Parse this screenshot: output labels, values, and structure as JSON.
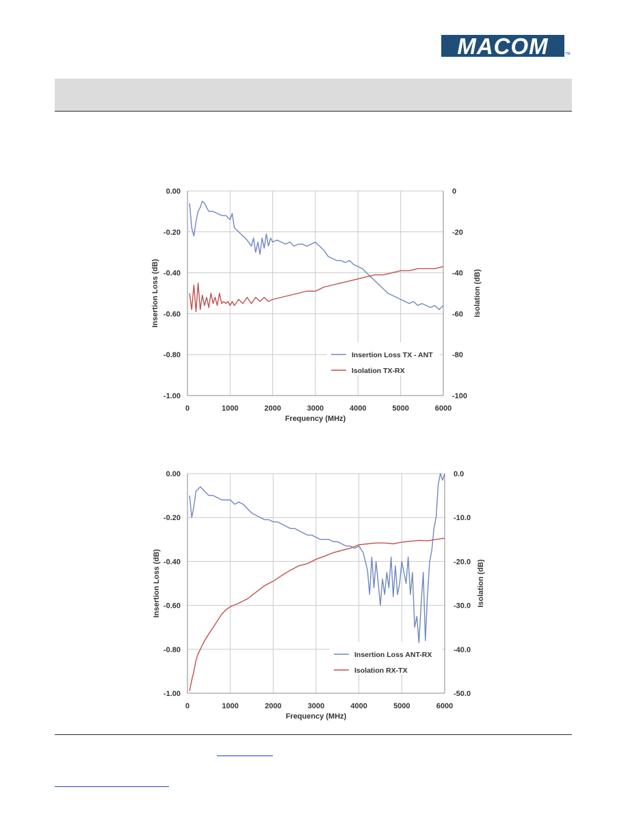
{
  "header": {
    "logo_text": "MACOM",
    "logo_tm": "TM",
    "logo_color": "#1f4e79"
  },
  "colors": {
    "insertion_loss": "#6f87c0",
    "isolation": "#c0504d",
    "grid": "#c9c9c9"
  },
  "chart_data": [
    {
      "type": "line",
      "title": "",
      "xlabel": "Frequency (MHz)",
      "ylabel": "Insertion Loss (dB)",
      "y2label": "Isolation (dB)",
      "xlim": [
        0,
        6000
      ],
      "ylim": [
        -1.0,
        0.0
      ],
      "y2lim": [
        -100,
        0
      ],
      "xticks": [
        "0",
        "1000",
        "2000",
        "3000",
        "4000",
        "5000",
        "6000"
      ],
      "yticks": [
        "0.00",
        "-0.20",
        "-0.40",
        "-0.60",
        "-0.80",
        "-1.00"
      ],
      "y2ticks": [
        "0",
        "-20",
        "-40",
        "-60",
        "-80",
        "-100"
      ],
      "legend_position": "lower-right",
      "series": [
        {
          "name": "Insertion Loss TX - ANT",
          "axis": "left",
          "x": [
            50,
            100,
            150,
            200,
            250,
            300,
            350,
            400,
            500,
            600,
            700,
            800,
            900,
            1000,
            1050,
            1100,
            1150,
            1200,
            1300,
            1400,
            1500,
            1550,
            1600,
            1650,
            1700,
            1750,
            1800,
            1850,
            1900,
            1950,
            2000,
            2100,
            2200,
            2300,
            2400,
            2500,
            2600,
            2700,
            2800,
            2900,
            3000,
            3100,
            3200,
            3300,
            3400,
            3500,
            3600,
            3700,
            3800,
            3900,
            4000,
            4100,
            4200,
            4300,
            4400,
            4500,
            4600,
            4700,
            4800,
            4900,
            5000,
            5100,
            5200,
            5300,
            5400,
            5500,
            5600,
            5700,
            5800,
            5900,
            6000
          ],
          "y": [
            -0.06,
            -0.18,
            -0.22,
            -0.15,
            -0.1,
            -0.08,
            -0.05,
            -0.06,
            -0.1,
            -0.1,
            -0.11,
            -0.12,
            -0.12,
            -0.14,
            -0.11,
            -0.18,
            -0.19,
            -0.2,
            -0.22,
            -0.24,
            -0.27,
            -0.23,
            -0.3,
            -0.25,
            -0.31,
            -0.23,
            -0.28,
            -0.21,
            -0.27,
            -0.23,
            -0.25,
            -0.24,
            -0.25,
            -0.26,
            -0.25,
            -0.27,
            -0.26,
            -0.26,
            -0.27,
            -0.26,
            -0.25,
            -0.27,
            -0.29,
            -0.32,
            -0.33,
            -0.34,
            -0.34,
            -0.35,
            -0.34,
            -0.36,
            -0.37,
            -0.38,
            -0.4,
            -0.42,
            -0.44,
            -0.46,
            -0.48,
            -0.5,
            -0.51,
            -0.52,
            -0.53,
            -0.54,
            -0.55,
            -0.54,
            -0.56,
            -0.55,
            -0.56,
            -0.57,
            -0.56,
            -0.58,
            -0.56
          ]
        },
        {
          "name": "Isolation TX-RX",
          "axis": "right",
          "x": [
            50,
            100,
            150,
            200,
            250,
            300,
            350,
            400,
            450,
            500,
            550,
            600,
            650,
            700,
            750,
            800,
            850,
            900,
            950,
            1000,
            1050,
            1100,
            1200,
            1300,
            1400,
            1500,
            1600,
            1700,
            1800,
            1900,
            2000,
            2200,
            2400,
            2600,
            2800,
            3000,
            3200,
            3400,
            3600,
            3800,
            4000,
            4200,
            4400,
            4600,
            4800,
            5000,
            5200,
            5400,
            5600,
            5800,
            6000
          ],
          "y": [
            -50,
            -58,
            -46,
            -59,
            -45,
            -58,
            -51,
            -56,
            -52,
            -57,
            -50,
            -55,
            -52,
            -56,
            -50,
            -55,
            -54,
            -55,
            -54,
            -56,
            -54,
            -56,
            -53,
            -55,
            -52,
            -55,
            -52,
            -54,
            -52,
            -54,
            -53,
            -52,
            -51,
            -50,
            -49,
            -49,
            -47,
            -46,
            -45,
            -44,
            -43,
            -42,
            -41,
            -41,
            -40,
            -39,
            -39,
            -38,
            -38,
            -38,
            -37
          ]
        }
      ]
    },
    {
      "type": "line",
      "title": "",
      "xlabel": "Frequency (MHz)",
      "ylabel": "Insertion Loss (dB)",
      "y2label": "Isolation (dB)",
      "xlim": [
        0,
        6000
      ],
      "ylim": [
        -1.0,
        0.0
      ],
      "y2lim": [
        -50,
        0
      ],
      "xticks": [
        "0",
        "1000",
        "2000",
        "3000",
        "4000",
        "5000",
        "6000"
      ],
      "yticks": [
        "0.00",
        "-0.20",
        "-0.40",
        "-0.60",
        "-0.80",
        "-1.00"
      ],
      "y2ticks": [
        "0.0",
        "-10.0",
        "-20.0",
        "-30.0",
        "-40.0",
        "-50.0"
      ],
      "legend_position": "lower-right",
      "series": [
        {
          "name": "Insertion Loss ANT-RX",
          "axis": "left",
          "x": [
            50,
            100,
            150,
            200,
            250,
            300,
            350,
            400,
            500,
            600,
            700,
            800,
            900,
            1000,
            1100,
            1200,
            1300,
            1400,
            1500,
            1600,
            1700,
            1800,
            1900,
            2000,
            2100,
            2200,
            2300,
            2400,
            2500,
            2600,
            2700,
            2800,
            2900,
            3000,
            3100,
            3200,
            3300,
            3400,
            3500,
            3600,
            3700,
            3800,
            3900,
            4000,
            4100,
            4200,
            4250,
            4300,
            4350,
            4400,
            4450,
            4500,
            4550,
            4600,
            4650,
            4700,
            4750,
            4800,
            4850,
            4900,
            4950,
            5000,
            5050,
            5100,
            5150,
            5200,
            5250,
            5300,
            5350,
            5400,
            5450,
            5500,
            5550,
            5600,
            5650,
            5700,
            5750,
            5800,
            5850,
            5900,
            5950,
            6000
          ],
          "y": [
            -0.1,
            -0.2,
            -0.15,
            -0.08,
            -0.07,
            -0.06,
            -0.07,
            -0.08,
            -0.1,
            -0.1,
            -0.11,
            -0.12,
            -0.12,
            -0.12,
            -0.14,
            -0.13,
            -0.14,
            -0.16,
            -0.18,
            -0.19,
            -0.2,
            -0.21,
            -0.21,
            -0.22,
            -0.22,
            -0.23,
            -0.24,
            -0.25,
            -0.25,
            -0.26,
            -0.27,
            -0.28,
            -0.28,
            -0.29,
            -0.3,
            -0.3,
            -0.3,
            -0.31,
            -0.31,
            -0.32,
            -0.33,
            -0.33,
            -0.34,
            -0.33,
            -0.36,
            -0.44,
            -0.55,
            -0.38,
            -0.52,
            -0.4,
            -0.5,
            -0.6,
            -0.48,
            -0.55,
            -0.45,
            -0.52,
            -0.38,
            -0.56,
            -0.42,
            -0.55,
            -0.5,
            -0.4,
            -0.45,
            -0.5,
            -0.38,
            -0.55,
            -0.45,
            -0.7,
            -0.65,
            -0.77,
            -0.6,
            -0.45,
            -0.76,
            -0.55,
            -0.4,
            -0.35,
            -0.25,
            -0.2,
            -0.05,
            0.0,
            -0.03,
            0.0
          ]
        },
        {
          "name": "Isolation RX-TX",
          "axis": "right",
          "x": [
            50,
            100,
            150,
            200,
            250,
            300,
            350,
            400,
            500,
            600,
            700,
            800,
            900,
            1000,
            1200,
            1400,
            1600,
            1800,
            2000,
            2200,
            2400,
            2600,
            2800,
            3000,
            3200,
            3400,
            3600,
            3800,
            4000,
            4200,
            4400,
            4600,
            4800,
            5000,
            5200,
            5400,
            5600,
            5800,
            6000
          ],
          "y": [
            -49.5,
            -47,
            -45,
            -42.5,
            -41,
            -40,
            -39,
            -38,
            -36.5,
            -35,
            -33.5,
            -32,
            -31,
            -30.3,
            -29.5,
            -28.5,
            -27,
            -25.5,
            -24.5,
            -23.2,
            -22,
            -21,
            -20.5,
            -19.5,
            -18.8,
            -18,
            -17.5,
            -17,
            -16.2,
            -16,
            -15.8,
            -15.8,
            -16,
            -15.6,
            -15.4,
            -15.2,
            -15.3,
            -15,
            -14.7
          ]
        }
      ]
    }
  ]
}
